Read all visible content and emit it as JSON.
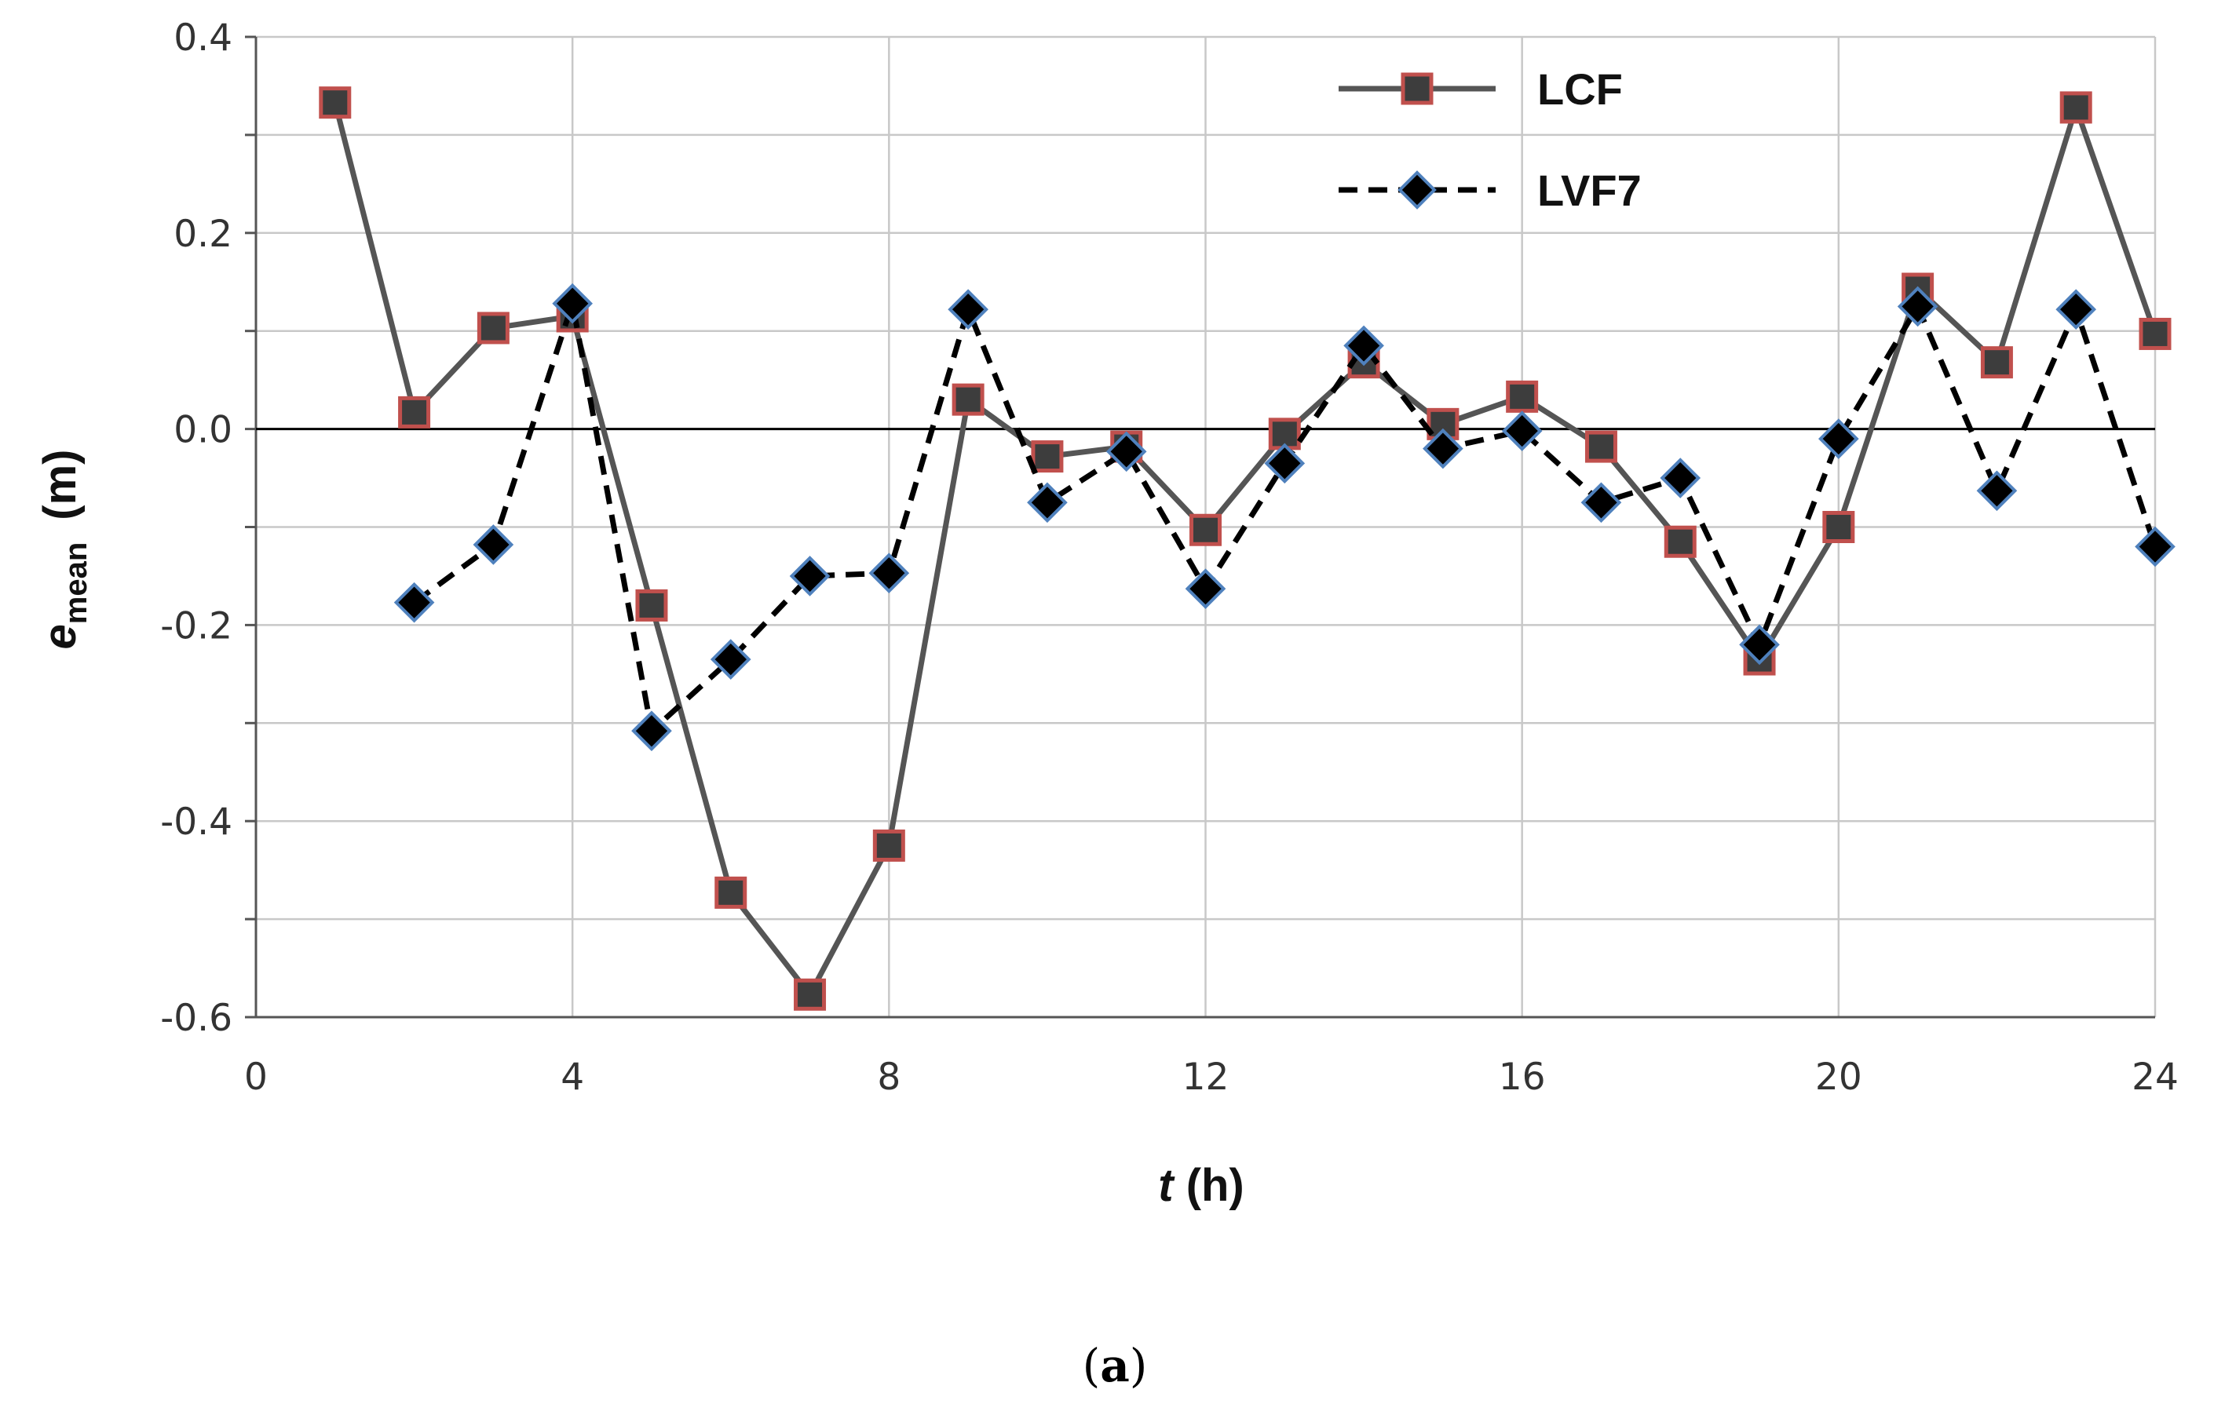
{
  "chart_data": {
    "type": "line",
    "xlabel": {
      "italic": "t",
      "rest": " (h)"
    },
    "ylabel": {
      "base": "e",
      "subscript": "mean",
      "unit": "(m)"
    },
    "caption": {
      "open": "(",
      "letter": "a",
      "close": ")"
    },
    "xlim": [
      0,
      24
    ],
    "ylim": [
      -0.6,
      0.4
    ],
    "x_ticks": [
      0,
      4,
      8,
      12,
      16,
      20,
      24
    ],
    "x_tick_labels": [
      "0",
      "4",
      "8",
      "12",
      "16",
      "20",
      "24"
    ],
    "y_ticks": [
      0.4,
      0.2,
      0.0,
      -0.2,
      -0.4,
      -0.6
    ],
    "y_tick_labels": [
      "0.4",
      "0.2",
      "0.0",
      "-0.2",
      "-0.4",
      "-0.6"
    ],
    "grid": true,
    "legend_position": "top-right",
    "series": [
      {
        "name": "LCF",
        "line_style": "solid",
        "marker": "square",
        "line_color": "#555555",
        "marker_fill": "#3d3d3d",
        "marker_edge": "#c0504d",
        "x": [
          1,
          2,
          3,
          4,
          5,
          6,
          7,
          8,
          9,
          10,
          11,
          12,
          13,
          14,
          15,
          16,
          17,
          18,
          19,
          20,
          21,
          22,
          23,
          24
        ],
        "y": [
          0.333,
          0.017,
          0.103,
          0.115,
          -0.18,
          -0.473,
          -0.577,
          -0.425,
          0.03,
          -0.028,
          -0.018,
          -0.103,
          -0.005,
          0.068,
          0.005,
          0.033,
          -0.018,
          -0.115,
          -0.235,
          -0.1,
          0.143,
          0.068,
          0.328,
          0.097
        ]
      },
      {
        "name": "LVF7",
        "line_style": "dashed",
        "marker": "diamond",
        "line_color": "#000000",
        "marker_fill": "#000000",
        "marker_edge": "#4f81bd",
        "x": [
          2,
          3,
          4,
          5,
          6,
          7,
          8,
          9,
          10,
          11,
          12,
          13,
          14,
          15,
          16,
          17,
          18,
          19,
          20,
          21,
          22,
          23,
          24
        ],
        "y": [
          -0.177,
          -0.118,
          0.128,
          -0.308,
          -0.235,
          -0.15,
          -0.147,
          0.122,
          -0.075,
          -0.023,
          -0.163,
          -0.035,
          0.085,
          -0.02,
          -0.002,
          -0.075,
          -0.05,
          -0.22,
          -0.01,
          0.125,
          -0.063,
          0.122,
          -0.12
        ]
      }
    ]
  }
}
